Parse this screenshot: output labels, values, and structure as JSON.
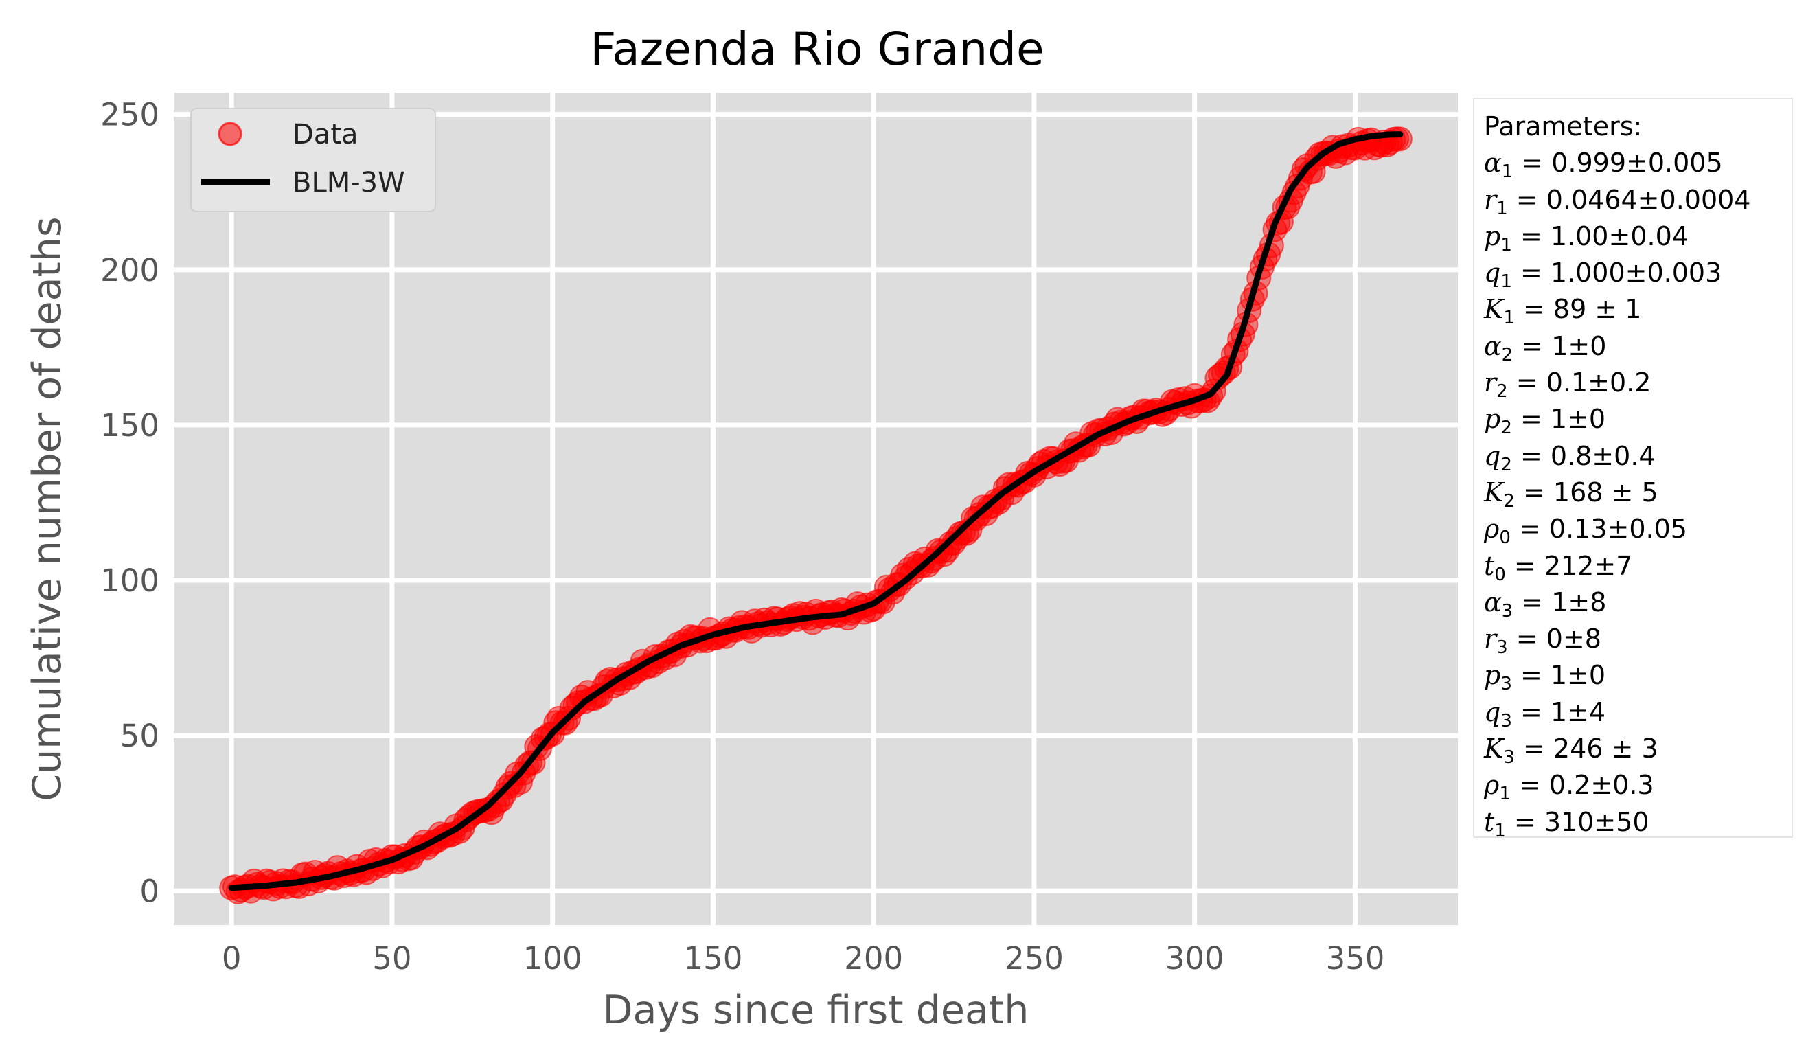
{
  "chart_data": {
    "type": "scatter",
    "title": "Fazenda Rio Grande",
    "xlabel": "Days since first death",
    "ylabel": "Cumulative number of deaths",
    "xlim": [
      -18,
      382
    ],
    "ylim": [
      -11,
      257
    ],
    "xticks": [
      0,
      50,
      100,
      150,
      200,
      250,
      300,
      350
    ],
    "yticks": [
      0,
      50,
      100,
      150,
      200,
      250
    ],
    "grid": true,
    "background": "#dddddd",
    "legend": {
      "placement": "top-left",
      "entries": [
        {
          "label": "Data",
          "marker": "circle",
          "color": "#ff0000"
        },
        {
          "label": "BLM-3W",
          "marker": "line",
          "color": "#000000"
        }
      ]
    },
    "series": [
      {
        "name": "Data",
        "kind": "scatter",
        "color": "#ff0000",
        "x": [
          0,
          10,
          20,
          30,
          40,
          50,
          60,
          70,
          80,
          90,
          100,
          110,
          120,
          130,
          140,
          150,
          160,
          170,
          180,
          190,
          200,
          210,
          220,
          230,
          240,
          250,
          260,
          270,
          280,
          290,
          300,
          305,
          310,
          315,
          320,
          325,
          330,
          335,
          340,
          345,
          350,
          355,
          360,
          364
        ],
        "y": [
          1,
          2,
          3,
          5,
          7,
          10,
          14,
          20,
          26,
          37,
          52,
          62,
          68,
          74,
          79,
          83,
          85,
          86,
          88,
          89,
          92,
          102,
          108,
          118,
          128,
          135,
          140,
          147,
          152,
          155,
          158,
          160,
          168,
          180,
          197,
          213,
          224,
          232,
          236,
          239,
          240,
          241,
          242,
          242
        ]
      },
      {
        "name": "BLM-3W",
        "kind": "line",
        "color": "#000000",
        "x": [
          0,
          10,
          20,
          30,
          40,
          50,
          60,
          70,
          80,
          90,
          100,
          110,
          120,
          130,
          140,
          150,
          160,
          170,
          180,
          190,
          200,
          210,
          220,
          230,
          240,
          250,
          260,
          270,
          280,
          290,
          300,
          305,
          310,
          315,
          320,
          325,
          330,
          335,
          340,
          345,
          350,
          355,
          360,
          364
        ],
        "y": [
          1,
          1.6,
          2.7,
          4.5,
          7,
          10,
          14.5,
          20,
          27.5,
          38,
          51,
          61,
          68,
          74,
          79,
          82.5,
          85,
          86.5,
          88,
          89,
          92.5,
          100,
          109,
          119,
          128,
          135,
          141,
          147,
          151.5,
          155,
          158,
          160,
          166,
          181,
          199,
          215,
          226,
          233,
          237.5,
          240.5,
          242,
          243,
          243.5,
          243.6
        ]
      }
    ]
  },
  "parameters": {
    "heading": "Parameters:",
    "items": [
      {
        "sym": "α",
        "sub": "1",
        "val": "0.999±0.005"
      },
      {
        "sym": "r",
        "sub": "1",
        "val": "0.0464±0.0004"
      },
      {
        "sym": "p",
        "sub": "1",
        "val": "1.00±0.04"
      },
      {
        "sym": "q",
        "sub": "1",
        "val": "1.000±0.003"
      },
      {
        "sym": "K",
        "sub": "1",
        "val": "89 ± 1"
      },
      {
        "sym": "α",
        "sub": "2",
        "val": "1±0"
      },
      {
        "sym": "r",
        "sub": "2",
        "val": "0.1±0.2"
      },
      {
        "sym": "p",
        "sub": "2",
        "val": "1±0"
      },
      {
        "sym": "q",
        "sub": "2",
        "val": "0.8±0.4"
      },
      {
        "sym": "K",
        "sub": "2",
        "val": "168 ± 5"
      },
      {
        "sym": "ρ",
        "sub": "0",
        "val": "0.13±0.05"
      },
      {
        "sym": "t",
        "sub": "0",
        "val": "212±7"
      },
      {
        "sym": "α",
        "sub": "3",
        "val": "1±8"
      },
      {
        "sym": "r",
        "sub": "3",
        "val": "0±8"
      },
      {
        "sym": "p",
        "sub": "3",
        "val": "1±0"
      },
      {
        "sym": "q",
        "sub": "3",
        "val": "1±4"
      },
      {
        "sym": "K",
        "sub": "3",
        "val": "246 ± 3"
      },
      {
        "sym": "ρ",
        "sub": "1",
        "val": "0.2±0.3"
      },
      {
        "sym": "t",
        "sub": "1",
        "val": "310±50"
      }
    ]
  }
}
